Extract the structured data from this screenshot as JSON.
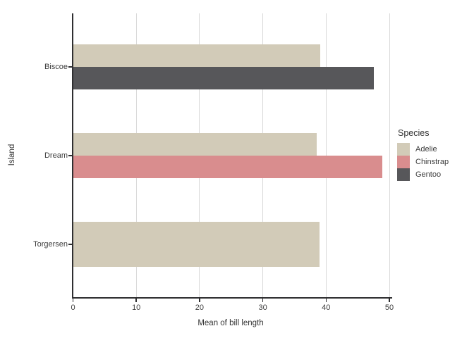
{
  "window": {
    "background": "#ffffff"
  },
  "chart_data": {
    "type": "bar",
    "orientation": "horizontal",
    "title": "",
    "xlabel": "Mean of bill length",
    "ylabel": "Island",
    "categories": [
      "Biscoe",
      "Dream",
      "Torgersen"
    ],
    "series": [
      {
        "name": "Adelie",
        "color": "#d2cbb8",
        "values": [
          38.98,
          38.5,
          38.95
        ]
      },
      {
        "name": "Chinstrap",
        "color": "#d98d8e",
        "values": [
          null,
          48.83,
          null
        ]
      },
      {
        "name": "Gentoo",
        "color": "#57575a",
        "values": [
          47.5,
          null,
          null
        ]
      }
    ],
    "xlim": [
      0,
      50
    ],
    "xticks": [
      0,
      10,
      20,
      30,
      40,
      50
    ],
    "grid": "vertical-major-only",
    "gridline_color": "#d9d9d9",
    "axis_line_color": "#2f2f31",
    "tick_text_color": "#3d3d3d",
    "legend": {
      "title": "Species",
      "position": "right"
    }
  }
}
